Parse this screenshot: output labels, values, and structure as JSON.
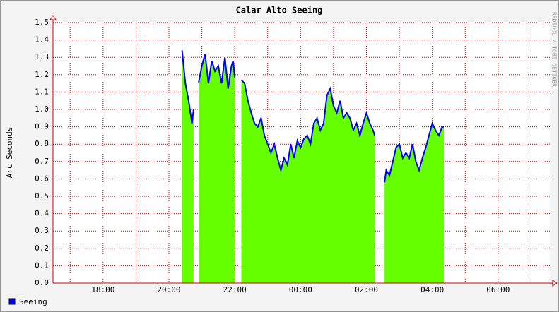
{
  "chart_data": {
    "type": "area",
    "title": "Calar Alto Seeing",
    "y_label": "Arc Seconds",
    "side_note": "RRDTOOL / TOBI OETIKER",
    "x": [
      20.4,
      20.5,
      20.6,
      20.7,
      20.75,
      20.8,
      20.9,
      21.0,
      21.1,
      21.2,
      21.3,
      21.4,
      21.5,
      21.6,
      21.7,
      21.8,
      21.9,
      21.95,
      22.0,
      22.1,
      22.2,
      22.3,
      22.4,
      22.5,
      22.6,
      22.7,
      22.8,
      22.9,
      23.0,
      23.1,
      23.2,
      23.3,
      23.4,
      23.5,
      23.6,
      23.7,
      23.8,
      23.9,
      24.0,
      24.1,
      24.2,
      24.3,
      24.4,
      24.5,
      24.6,
      24.7,
      24.8,
      24.9,
      25.0,
      25.1,
      25.2,
      25.3,
      25.4,
      25.5,
      25.6,
      25.7,
      25.8,
      25.9,
      26.0,
      26.1,
      26.2,
      26.25,
      26.4,
      26.55,
      26.6,
      26.7,
      26.8,
      26.9,
      27.0,
      27.1,
      27.2,
      27.3,
      27.4,
      27.5,
      27.6,
      27.7,
      27.8,
      27.9,
      28.0,
      28.1,
      28.2,
      28.3,
      28.35
    ],
    "series": [
      {
        "name": "Seeing",
        "color": "#0000ff",
        "fill": "#66ff00",
        "values": [
          1.34,
          1.15,
          1.05,
          0.92,
          1.0,
          null,
          1.15,
          1.25,
          1.32,
          1.15,
          1.28,
          1.22,
          1.25,
          1.15,
          1.3,
          1.12,
          1.25,
          1.28,
          1.18,
          null,
          1.17,
          1.15,
          1.05,
          0.98,
          0.92,
          0.9,
          0.95,
          0.85,
          0.8,
          0.75,
          0.8,
          0.72,
          0.65,
          0.72,
          0.68,
          0.8,
          0.72,
          0.82,
          0.78,
          0.83,
          0.85,
          0.8,
          0.92,
          0.95,
          0.88,
          0.92,
          1.08,
          1.12,
          1.02,
          0.98,
          1.05,
          0.95,
          0.98,
          0.95,
          0.88,
          0.92,
          0.85,
          0.92,
          0.98,
          0.92,
          0.88,
          0.85,
          null,
          0.58,
          0.65,
          0.62,
          0.7,
          0.78,
          0.8,
          0.72,
          0.75,
          0.72,
          0.8,
          0.7,
          0.65,
          0.72,
          0.78,
          0.85,
          0.92,
          0.88,
          0.85,
          0.9,
          0.9
        ]
      }
    ],
    "xlim": [
      16.48,
      31.57
    ],
    "xticks": [
      {
        "value": 18,
        "label": "18:00"
      },
      {
        "value": 20,
        "label": "20:00"
      },
      {
        "value": 22,
        "label": "22:00"
      },
      {
        "value": 24,
        "label": "00:00"
      },
      {
        "value": 26,
        "label": "02:00"
      },
      {
        "value": 28,
        "label": "04:00"
      },
      {
        "value": 30,
        "label": "06:00"
      }
    ],
    "xminorticks": [
      17,
      19,
      21,
      23,
      25,
      27,
      29,
      31
    ],
    "ylim": [
      0,
      1.5
    ],
    "yticks": [
      {
        "value": 0,
        "label": "0.0"
      },
      0.1,
      0.2,
      0.3,
      0.4,
      0.5,
      0.6,
      0.7,
      0.8,
      0.9,
      {
        "value": 1,
        "label": "1.0"
      },
      1.1,
      1.2,
      1.3,
      1.4,
      1.5
    ],
    "grid": true,
    "legend": "bottom-left"
  }
}
